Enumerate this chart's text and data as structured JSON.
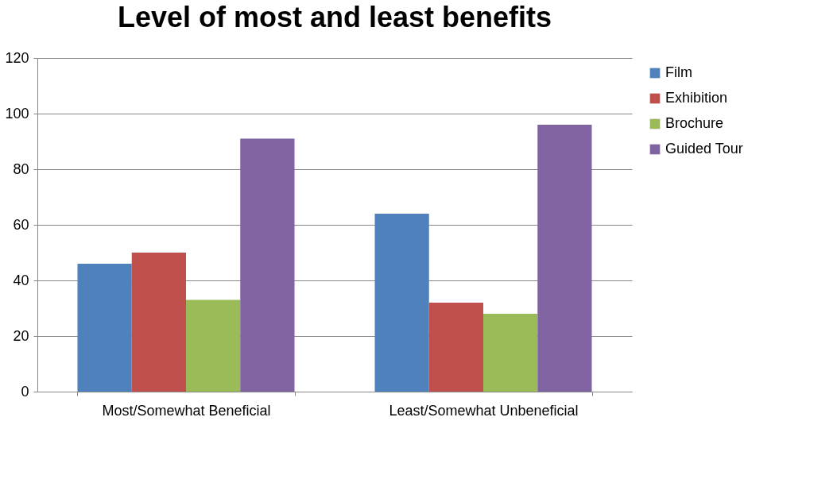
{
  "chart_data": {
    "type": "bar",
    "title": "Level of most and least benefits",
    "categories": [
      "Most/Somewhat Beneficial",
      "Least/Somewhat Unbeneficial"
    ],
    "series": [
      {
        "name": "Film",
        "color": "#4f81bd",
        "values": [
          46,
          64
        ]
      },
      {
        "name": "Exhibition",
        "color": "#c0504d",
        "values": [
          50,
          32
        ]
      },
      {
        "name": "Brochure",
        "color": "#9bbb59",
        "values": [
          33,
          28
        ]
      },
      {
        "name": "Guided Tour",
        "color": "#8064a2",
        "values": [
          91,
          96
        ]
      }
    ],
    "ylim": [
      0,
      120
    ],
    "yticks": [
      0,
      20,
      40,
      60,
      80,
      100,
      120
    ],
    "grid": "y",
    "legend": "right"
  }
}
